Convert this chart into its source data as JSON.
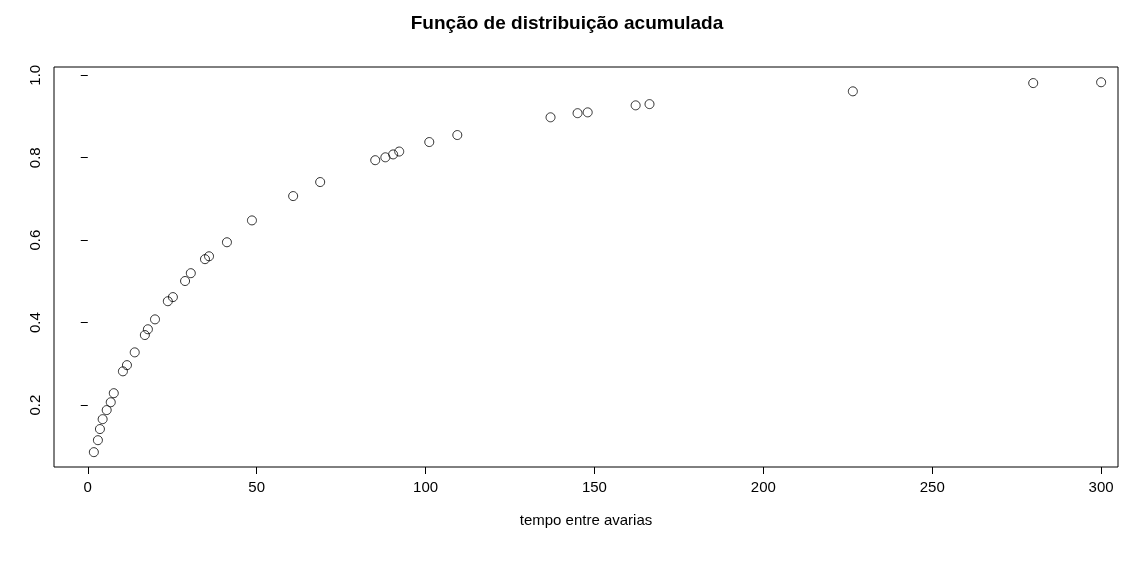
{
  "chart_data": {
    "type": "scatter",
    "title": "Função de distribuição acumulada",
    "xlabel": "tempo entre avarias",
    "color": "#000000",
    "marker": "circle",
    "grid": false,
    "x": [
      1.8,
      3,
      3.6,
      4.4,
      5.6,
      6.8,
      7.7,
      10.4,
      11.6,
      13.9,
      16.9,
      17.8,
      19.9,
      23.7,
      25.2,
      28.8,
      30.5,
      34.7,
      35.9,
      41.2,
      48.6,
      60.8,
      68.8,
      85.1,
      88.1,
      90.4,
      92.2,
      101.1,
      109.4,
      137,
      145,
      148,
      162.2,
      166.3,
      226.5,
      279.9,
      300
    ],
    "values": [
      0.086,
      0.115,
      0.142,
      0.166,
      0.188,
      0.207,
      0.229,
      0.282,
      0.297,
      0.328,
      0.37,
      0.384,
      0.408,
      0.452,
      0.462,
      0.501,
      0.52,
      0.554,
      0.561,
      0.595,
      0.648,
      0.707,
      0.741,
      0.794,
      0.801,
      0.808,
      0.815,
      0.838,
      0.855,
      0.898,
      0.908,
      0.91,
      0.927,
      0.93,
      0.961,
      0.981,
      0.983
    ],
    "xlim": [
      -10,
      305
    ],
    "xticks": [
      0,
      50,
      100,
      150,
      200,
      250,
      300
    ],
    "ylim": [
      0.05,
      1.02
    ],
    "yticks": [
      {
        "value": 0.2,
        "label": "0.2"
      },
      {
        "value": 0.4,
        "label": "0.4"
      },
      {
        "value": 0.6,
        "label": "0.6"
      },
      {
        "value": 0.8,
        "label": "0.8"
      },
      {
        "value": 1,
        "label": "1.0"
      }
    ]
  }
}
